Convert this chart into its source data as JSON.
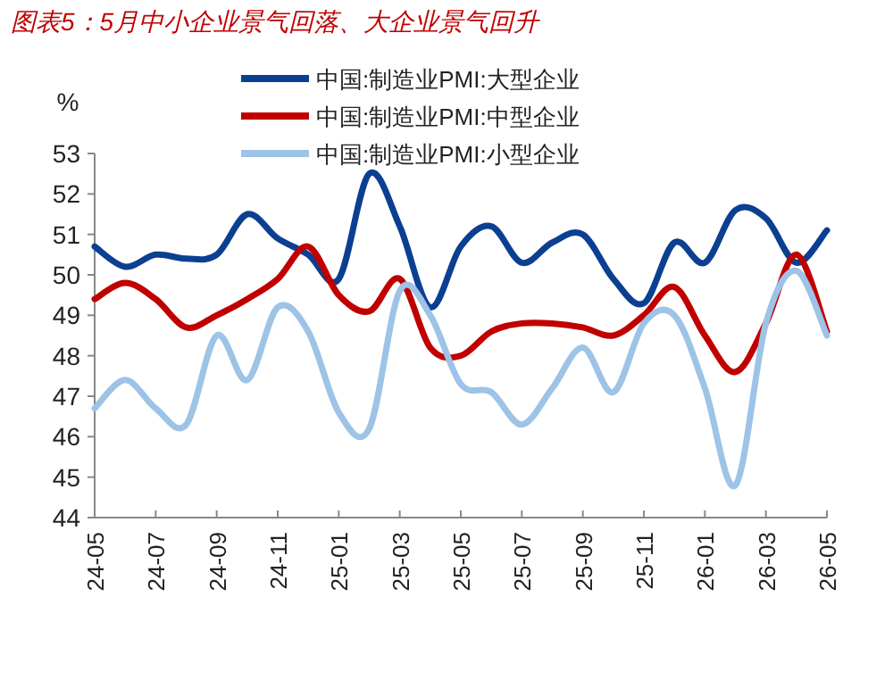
{
  "chart_data": {
    "type": "line",
    "title": "图表5：5月中小企业景气回落、大企业景气回升",
    "ylabel": "%",
    "categories": [
      "24-05",
      null,
      "24-07",
      null,
      "24-09",
      null,
      "24-11",
      null,
      "25-01",
      null,
      "25-03",
      null,
      "25-05",
      null,
      "25-07",
      null,
      "25-09",
      null,
      "25-11",
      null,
      "26-01",
      null,
      "26-03",
      null,
      "26-05"
    ],
    "series": [
      {
        "name": "中国:制造业PMI:大型企业",
        "color": "#0b3f91",
        "values": [
          50.7,
          50.2,
          50.5,
          50.4,
          50.5,
          51.5,
          50.9,
          50.5,
          49.9,
          52.5,
          51.2,
          49.2,
          50.7,
          51.2,
          50.3,
          50.8,
          51.0,
          49.9,
          49.3,
          50.8,
          50.3,
          51.6,
          51.4,
          50.3,
          51.1
        ]
      },
      {
        "name": "中国:制造业PMI:中型企业",
        "color": "#c00000",
        "values": [
          49.4,
          49.8,
          49.4,
          48.7,
          49.0,
          49.4,
          49.9,
          50.7,
          49.5,
          49.1,
          49.9,
          48.2,
          48.0,
          48.6,
          48.8,
          48.8,
          48.7,
          48.5,
          49.0,
          49.7,
          48.5,
          47.6,
          48.8,
          50.5,
          48.6
        ]
      },
      {
        "name": "中国:制造业PMI:小型企业",
        "color": "#9dc3e6",
        "values": [
          46.7,
          47.4,
          46.7,
          46.3,
          48.5,
          47.4,
          49.2,
          48.6,
          46.6,
          46.2,
          49.6,
          49.0,
          47.3,
          47.1,
          46.3,
          47.2,
          48.2,
          47.1,
          48.8,
          49.0,
          47.2,
          44.8,
          48.8,
          50.1,
          48.5
        ]
      }
    ],
    "ylim": [
      44,
      53
    ],
    "yticks": [
      44,
      45,
      46,
      47,
      48,
      49,
      50,
      51,
      52,
      53
    ],
    "legend": "top",
    "grid": false
  }
}
